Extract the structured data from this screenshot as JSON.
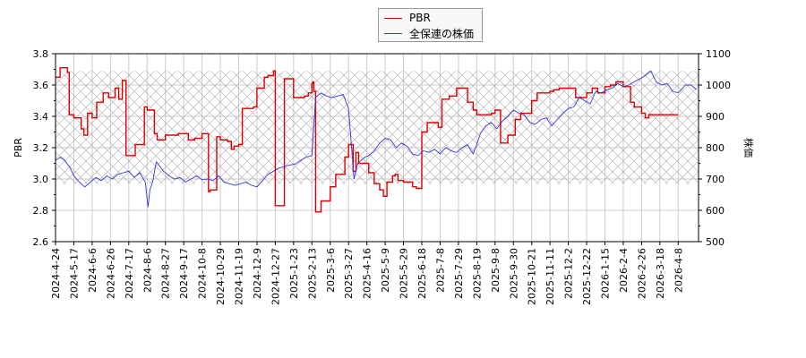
{
  "chart_data": {
    "type": "line",
    "title": "",
    "xlabel": "",
    "ylabel_left": "PBR",
    "ylabel_right": "株価",
    "ylim_left": [
      2.6,
      3.8
    ],
    "ylim_right": [
      500,
      1100
    ],
    "yticks_left": [
      "3.8",
      "3.6",
      "3.4",
      "3.2",
      "3.0",
      "2.8",
      "2.6"
    ],
    "yticks_right": [
      "1100",
      "1000",
      "900",
      "800",
      "700",
      "600",
      "500"
    ],
    "grid": true,
    "legend_position": "top-center",
    "shaded_band_pbr": [
      2.97,
      3.69
    ],
    "x_tick_labels": [
      "2024-4-24",
      "2024-5-17",
      "2024-6-6",
      "2024-6-26",
      "2024-7-17",
      "2024-8-6",
      "2024-8-27",
      "2024-9-17",
      "2024-10-8",
      "2024-10-29",
      "2024-11-19",
      "2024-12-9",
      "2024-12-27",
      "2025-1-23",
      "2025-2-13",
      "2025-3-6",
      "2025-3-27",
      "2025-4-16",
      "2025-5-9",
      "2025-5-29",
      "2025-6-18",
      "2025-7-8",
      "2025-7-29",
      "2025-8-19",
      "2025-9-8",
      "2025-9-30",
      "2025-10-21",
      "2025-11-11",
      "2025-12-2",
      "2025-12-22",
      "2026-1-15",
      "2026-2-4",
      "2026-2-26",
      "2026-3-18",
      "2026-4-8"
    ],
    "series": [
      {
        "name": "PBR",
        "axis": "left",
        "color": "#dd0000",
        "step": true,
        "points_x_tick_index": [
          0,
          0.25,
          0.45,
          0.65,
          0.75,
          0.85,
          1.0,
          1.4,
          1.55,
          1.75,
          2.0,
          2.25,
          2.6,
          2.9,
          3.0,
          3.25,
          3.45,
          3.65,
          3.85,
          4.1,
          4.35,
          4.5,
          4.7,
          4.85,
          5.0,
          5.1,
          5.4,
          5.55,
          6.0,
          6.15,
          6.5,
          6.7,
          7.0,
          7.25,
          7.6,
          8.0,
          8.35,
          8.45,
          8.8,
          9.0,
          9.2,
          9.4,
          9.6,
          9.75,
          10.0,
          10.2,
          10.5,
          10.8,
          11.0,
          11.4,
          11.6,
          11.9,
          12.0,
          12.5,
          13.0,
          13.4,
          13.6,
          13.8,
          14.0,
          14.05,
          14.1,
          14.2,
          14.5,
          15.0,
          15.3,
          15.8,
          16.0,
          16.25,
          16.4,
          16.55,
          16.8,
          17.1,
          17.4,
          17.7,
          17.9,
          18.1,
          18.3,
          18.4,
          18.55,
          18.7,
          19.0,
          19.5,
          19.7,
          20.0,
          20.3,
          20.6,
          20.9,
          21.1,
          21.5,
          21.9,
          22.2,
          22.5,
          22.8,
          23.0,
          23.3,
          23.8,
          24.0,
          24.3,
          24.7,
          25.1,
          25.4,
          25.8,
          26.0,
          26.3,
          27.0,
          27.2,
          27.5,
          27.8,
          28.4,
          29.0,
          29.3,
          29.6,
          30.0,
          30.3,
          30.6,
          31.0,
          31.4,
          31.6,
          32.0,
          32.2,
          32.4,
          32.8,
          33.0,
          33.3,
          33.7,
          34.0,
          35.0
        ],
        "values": [
          3.65,
          3.71,
          3.71,
          3.68,
          3.41,
          3.41,
          3.39,
          3.32,
          3.28,
          3.42,
          3.39,
          3.49,
          3.55,
          3.52,
          3.52,
          3.58,
          3.51,
          3.63,
          3.15,
          3.15,
          3.22,
          3.22,
          3.22,
          3.46,
          3.44,
          3.44,
          3.29,
          3.25,
          3.28,
          3.28,
          3.28,
          3.29,
          3.29,
          3.25,
          3.26,
          3.29,
          2.92,
          2.93,
          3.27,
          3.25,
          3.25,
          3.24,
          3.19,
          3.21,
          3.22,
          3.45,
          3.45,
          3.46,
          3.58,
          3.65,
          3.66,
          3.69,
          2.83,
          3.64,
          3.52,
          3.52,
          3.53,
          3.55,
          3.61,
          3.62,
          3.56,
          2.79,
          2.86,
          2.95,
          3.03,
          3.14,
          3.22,
          3.05,
          3.17,
          3.1,
          3.1,
          3.04,
          2.97,
          2.93,
          2.89,
          2.98,
          2.98,
          3.02,
          3.03,
          2.99,
          2.98,
          2.95,
          2.94,
          3.3,
          3.36,
          3.36,
          3.33,
          3.51,
          3.53,
          3.58,
          3.58,
          3.49,
          3.44,
          3.41,
          3.41,
          3.42,
          3.44,
          3.23,
          3.28,
          3.38,
          3.42,
          3.42,
          3.5,
          3.55,
          3.56,
          3.57,
          3.58,
          3.58,
          3.52,
          3.55,
          3.58,
          3.55,
          3.59,
          3.6,
          3.62,
          3.59,
          3.49,
          3.46,
          3.42,
          3.39,
          3.41,
          3.41,
          3.41,
          3.41,
          3.41
        ]
      },
      {
        "name": "全保連の株価",
        "axis": "right",
        "color": "#3333dd",
        "step": false,
        "points_x_tick_index": [
          0,
          0.3,
          0.5,
          0.8,
          1.0,
          1.3,
          1.6,
          1.9,
          2.2,
          2.5,
          2.8,
          3.1,
          3.4,
          3.7,
          4.0,
          4.3,
          4.6,
          4.9,
          5.05,
          5.15,
          5.3,
          5.5,
          5.7,
          5.9,
          6.2,
          6.5,
          6.8,
          7.1,
          7.4,
          7.7,
          8.0,
          8.3,
          8.6,
          8.9,
          9.2,
          9.5,
          9.8,
          10.1,
          10.4,
          10.7,
          11.0,
          11.3,
          11.6,
          11.9,
          12.2,
          12.5,
          12.8,
          13.1,
          13.4,
          13.7,
          14.0,
          14.2,
          14.5,
          14.8,
          15.1,
          15.4,
          15.7,
          16.0,
          16.3,
          16.5,
          16.7,
          16.9,
          17.1,
          17.4,
          17.7,
          18.0,
          18.3,
          18.6,
          18.9,
          19.2,
          19.5,
          19.8,
          20.1,
          20.4,
          20.7,
          21.0,
          21.3,
          21.6,
          21.9,
          22.2,
          22.5,
          22.8,
          23.0,
          23.2,
          23.5,
          23.8,
          24.1,
          24.4,
          24.7,
          25.0,
          25.3,
          25.6,
          25.9,
          26.2,
          26.5,
          26.8,
          27.1,
          27.4,
          27.7,
          28.0,
          28.3,
          28.6,
          28.9,
          29.2,
          29.5,
          29.8,
          30.1,
          30.4,
          30.7,
          31.0,
          31.3,
          31.6,
          31.9,
          32.2,
          32.5,
          32.8,
          33.1,
          33.4,
          33.7,
          34.0,
          34.4,
          34.7,
          35.0
        ],
        "values": [
          760,
          770,
          760,
          735,
          710,
          690,
          675,
          690,
          705,
          695,
          710,
          700,
          715,
          720,
          725,
          705,
          720,
          690,
          610,
          665,
          690,
          755,
          740,
          725,
          710,
          700,
          705,
          690,
          700,
          710,
          698,
          700,
          695,
          710,
          690,
          685,
          680,
          685,
          690,
          680,
          675,
          695,
          715,
          725,
          735,
          740,
          745,
          748,
          760,
          770,
          775,
          960,
          975,
          965,
          960,
          965,
          970,
          925,
          700,
          750,
          760,
          770,
          775,
          790,
          815,
          830,
          825,
          800,
          815,
          805,
          780,
          775,
          790,
          785,
          795,
          780,
          800,
          790,
          785,
          800,
          810,
          780,
          810,
          845,
          870,
          880,
          860,
          885,
          900,
          920,
          910,
          905,
          880,
          875,
          890,
          895,
          870,
          890,
          910,
          925,
          930,
          960,
          950,
          940,
          980,
          975,
          985,
          990,
          1005,
          995,
          1000,
          1010,
          1020,
          1030,
          1045,
          1010,
          1000,
          1005,
          980,
          975,
          1000,
          1000,
          985
        ]
      }
    ]
  },
  "legend": {
    "items": [
      {
        "label": "PBR",
        "color": "#dd0000"
      },
      {
        "label": "全保連の株価",
        "color": "#3333dd"
      }
    ]
  },
  "axes": {
    "left_label": "PBR",
    "right_label": "株価"
  }
}
